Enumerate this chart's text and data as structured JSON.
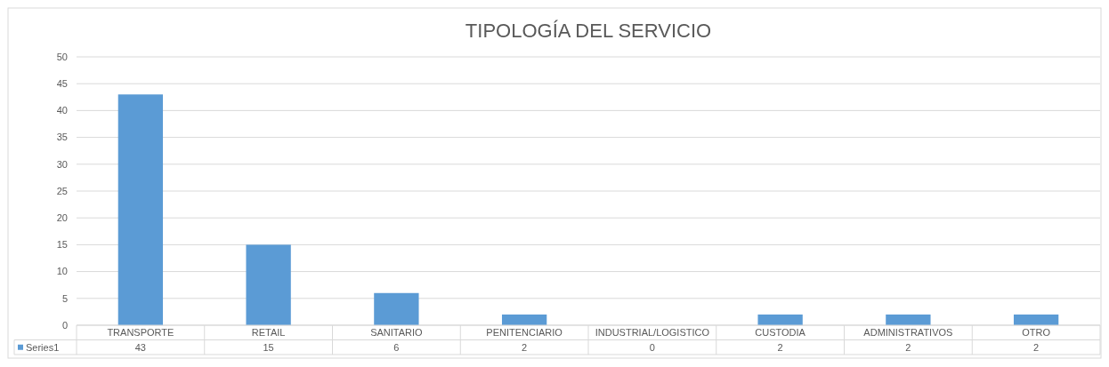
{
  "chart_data": {
    "type": "bar",
    "title": "TIPOLOGÍA DEL SERVICIO",
    "categories": [
      "TRANSPORTE",
      "RETAIL",
      "SANITARIO",
      "PENITENCIARIO",
      "INDUSTRIAL/LOGISTICO",
      "CUSTODIA",
      "ADMINISTRATIVOS",
      "OTRO"
    ],
    "series": [
      {
        "name": "Series1",
        "color": "#5b9bd5",
        "values": [
          43,
          15,
          6,
          2,
          0,
          2,
          2,
          2
        ]
      }
    ],
    "ylim": [
      0,
      50
    ],
    "yticks": [
      0,
      5,
      10,
      15,
      20,
      25,
      30,
      35,
      40,
      45,
      50
    ],
    "grid": true,
    "legend": "bottom",
    "data_labels": true
  }
}
